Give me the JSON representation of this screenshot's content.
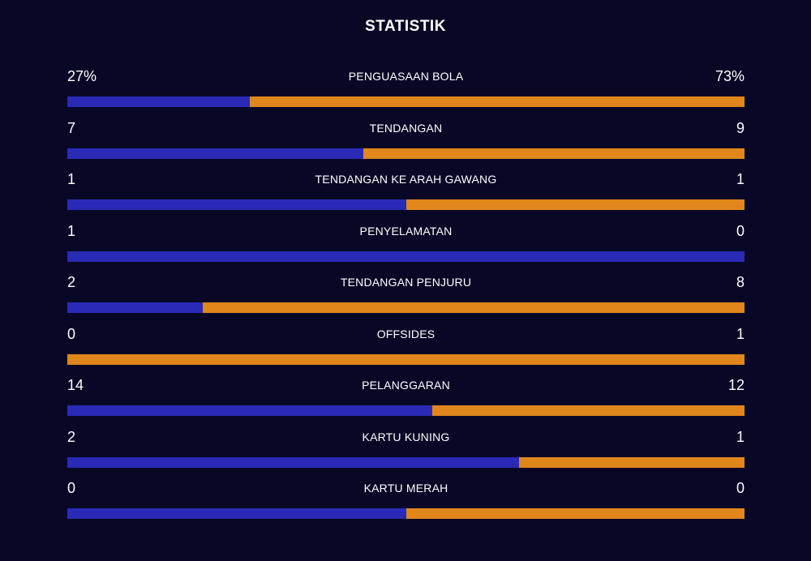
{
  "title": "STATISTIK",
  "colors": {
    "background": "#080826",
    "home": "#2a2ab6",
    "away": "#e0861b",
    "text": "#ffffff"
  },
  "stats": [
    {
      "label": "PENGUASAAN BOLA",
      "home": "27%",
      "away": "73%",
      "home_value": 27,
      "away_value": 73
    },
    {
      "label": "TENDANGAN",
      "home": "7",
      "away": "9",
      "home_value": 7,
      "away_value": 9
    },
    {
      "label": "TENDANGAN KE ARAH GAWANG",
      "home": "1",
      "away": "1",
      "home_value": 1,
      "away_value": 1
    },
    {
      "label": "PENYELAMATAN",
      "home": "1",
      "away": "0",
      "home_value": 1,
      "away_value": 0
    },
    {
      "label": "TENDANGAN PENJURU",
      "home": "2",
      "away": "8",
      "home_value": 2,
      "away_value": 8
    },
    {
      "label": "OFFSIDES",
      "home": "0",
      "away": "1",
      "home_value": 0,
      "away_value": 1
    },
    {
      "label": "PELANGGARAN",
      "home": "14",
      "away": "12",
      "home_value": 14,
      "away_value": 12
    },
    {
      "label": "KARTU KUNING",
      "home": "2",
      "away": "1",
      "home_value": 2,
      "away_value": 1
    },
    {
      "label": "KARTU MERAH",
      "home": "0",
      "away": "0",
      "home_value": 0,
      "away_value": 0
    }
  ]
}
